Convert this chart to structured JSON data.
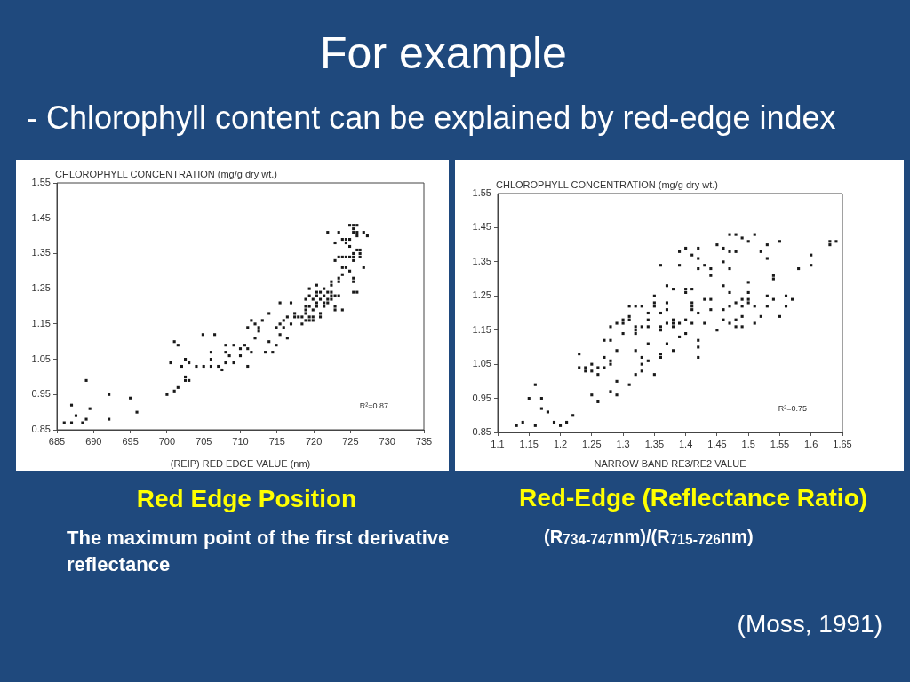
{
  "chart_data": [
    {
      "type": "scatter",
      "title": "For example",
      "subtitle": "- Chlorophyll content can be explained by red-edge index",
      "xlabel": "(REIP) RED EDGE VALUE (nm)",
      "ylabel": "CHLOROPHYLL CONCENTRATION (mg/g dry wt.)",
      "annotations": [
        "R²=0.87",
        "Red Edge Position",
        "The maximum point of the first derivative reflectance"
      ],
      "color": "#1a1a1a",
      "marker": "square",
      "xlim": [
        685,
        735
      ],
      "xticks": [
        685,
        690,
        695,
        700,
        705,
        710,
        715,
        720,
        725,
        730,
        735
      ],
      "ylim": [
        0.85,
        1.55
      ],
      "yticks": [
        0.85,
        0.95,
        1.05,
        1.15,
        1.25,
        1.35,
        1.45,
        1.55
      ],
      "x": [
        686.0,
        687.0,
        687.0,
        687.6,
        688.5,
        689.0,
        689.0,
        689.5,
        692.1,
        692.1,
        695.0,
        695.9,
        700.0,
        700.5,
        701.0,
        701.0,
        701.5,
        701.5,
        702.0,
        702.5,
        702.5,
        702.5,
        703.0,
        703.0,
        704.0,
        704.9,
        705.0,
        706.0,
        706.0,
        706.0,
        706.5,
        707.0,
        707.5,
        708.0,
        708.0,
        708.0,
        708.5,
        709.1,
        709.1,
        710.0,
        710.0,
        710.6,
        711.0,
        711.5,
        711.0,
        711.0,
        712.0,
        712.0,
        711.5,
        712.5,
        712.5,
        713.0,
        713.4,
        713.9,
        713.9,
        714.4,
        714.9,
        714.9,
        715.4,
        715.4,
        715.4,
        715.9,
        715.9,
        716.4,
        716.4,
        716.9,
        716.9,
        717.4,
        717.4,
        717.9,
        718.4,
        718.4,
        718.9,
        718.9,
        718.9,
        718.9,
        718.9,
        719.4,
        719.4,
        719.4,
        719.4,
        719.4,
        719.9,
        719.9,
        719.9,
        719.9,
        720.4,
        720.4,
        720.4,
        720.4,
        720.4,
        720.9,
        720.9,
        720.9,
        720.9,
        721.4,
        721.4,
        721.4,
        721.4,
        721.9,
        721.9,
        721.9,
        721.9,
        722.4,
        722.4,
        722.4,
        722.4,
        722.4,
        722.9,
        722.9,
        722.9,
        722.9,
        722.9,
        723.4,
        723.4,
        723.4,
        723.4,
        723.4,
        723.9,
        723.9,
        723.9,
        723.9,
        724.4,
        724.4,
        723.9,
        724.4,
        724.9,
        724.9,
        724.9,
        724.9,
        724.4,
        725.4,
        724.9,
        725.4,
        725.9,
        725.4,
        725.9,
        725.9,
        725.9,
        725.4,
        725.4,
        725.4,
        725.4,
        725.4,
        725.4,
        725.9,
        726.3,
        726.3,
        726.3,
        726.8,
        726.8,
        727.3
      ],
      "values": [
        0.87,
        0.87,
        0.92,
        0.89,
        0.87,
        0.88,
        0.99,
        0.91,
        0.95,
        0.88,
        0.94,
        0.9,
        0.95,
        1.04,
        1.1,
        0.96,
        1.09,
        0.97,
        1.03,
        1.05,
        1.0,
        0.99,
        1.04,
        0.99,
        1.03,
        1.12,
        1.03,
        1.07,
        1.05,
        1.03,
        1.12,
        1.03,
        1.02,
        1.09,
        1.07,
        1.04,
        1.06,
        1.09,
        1.04,
        1.08,
        1.06,
        1.09,
        1.08,
        1.07,
        1.03,
        1.14,
        1.11,
        1.15,
        1.16,
        1.14,
        1.13,
        1.16,
        1.07,
        1.18,
        1.1,
        1.07,
        1.09,
        1.14,
        1.21,
        1.12,
        1.15,
        1.16,
        1.14,
        1.17,
        1.11,
        1.21,
        1.15,
        1.18,
        1.17,
        1.17,
        1.17,
        1.15,
        1.18,
        1.16,
        1.22,
        1.2,
        1.19,
        1.25,
        1.23,
        1.2,
        1.17,
        1.16,
        1.22,
        1.19,
        1.17,
        1.16,
        1.26,
        1.24,
        1.23,
        1.21,
        1.2,
        1.24,
        1.22,
        1.18,
        1.17,
        1.25,
        1.23,
        1.21,
        1.2,
        1.24,
        1.22,
        1.21,
        1.41,
        1.24,
        1.23,
        1.22,
        1.27,
        1.26,
        1.23,
        1.2,
        1.19,
        1.38,
        1.33,
        1.41,
        1.28,
        1.27,
        1.23,
        1.34,
        1.19,
        1.29,
        1.31,
        1.39,
        1.39,
        1.38,
        1.34,
        1.34,
        1.39,
        1.37,
        1.34,
        1.3,
        1.31,
        1.42,
        1.43,
        1.43,
        1.43,
        1.41,
        1.41,
        1.4,
        1.36,
        1.35,
        1.34,
        1.33,
        1.28,
        1.27,
        1.24,
        1.24,
        1.34,
        1.35,
        1.36,
        1.41,
        1.31,
        1.4
      ]
    },
    {
      "type": "scatter",
      "xlabel": "NARROW BAND RE3/RE2 VALUE",
      "ylabel": "CHLOROPHYLL CONCENTRATION (mg/g dry wt.)",
      "annotations": [
        "R²=0.75",
        "Red-Edge (Reflectance Ratio)",
        "(R$_{734-747}$nm)/(R$_{715-726}$nm)",
        "(Moss, 1991)"
      ],
      "color": "#1a1a1a",
      "marker": "square",
      "xlim": [
        1.1,
        1.65
      ],
      "xticks": [
        1.1,
        1.15,
        1.2,
        1.25,
        1.3,
        1.35,
        1.4,
        1.45,
        1.5,
        1.55,
        1.6,
        1.65
      ],
      "ylim": [
        0.85,
        1.55
      ],
      "yticks": [
        0.85,
        0.95,
        1.05,
        1.15,
        1.25,
        1.35,
        1.45,
        1.55
      ],
      "x": [
        1.13,
        1.14,
        1.15,
        1.16,
        1.16,
        1.17,
        1.17,
        1.18,
        1.19,
        1.2,
        1.21,
        1.22,
        1.23,
        1.23,
        1.24,
        1.24,
        1.25,
        1.25,
        1.25,
        1.26,
        1.26,
        1.26,
        1.27,
        1.27,
        1.27,
        1.28,
        1.28,
        1.28,
        1.28,
        1.28,
        1.29,
        1.29,
        1.29,
        1.29,
        1.3,
        1.3,
        1.3,
        1.31,
        1.31,
        1.31,
        1.31,
        1.32,
        1.32,
        1.32,
        1.32,
        1.32,
        1.32,
        1.33,
        1.33,
        1.33,
        1.33,
        1.33,
        1.34,
        1.34,
        1.34,
        1.34,
        1.34,
        1.35,
        1.35,
        1.35,
        1.35,
        1.36,
        1.36,
        1.36,
        1.36,
        1.36,
        1.36,
        1.37,
        1.37,
        1.37,
        1.37,
        1.37,
        1.38,
        1.38,
        1.38,
        1.38,
        1.38,
        1.39,
        1.39,
        1.39,
        1.39,
        1.4,
        1.4,
        1.4,
        1.4,
        1.4,
        1.41,
        1.41,
        1.41,
        1.41,
        1.41,
        1.41,
        1.42,
        1.42,
        1.42,
        1.42,
        1.42,
        1.42,
        1.42,
        1.43,
        1.43,
        1.43,
        1.44,
        1.44,
        1.44,
        1.44,
        1.45,
        1.45,
        1.46,
        1.46,
        1.46,
        1.46,
        1.46,
        1.47,
        1.48,
        1.47,
        1.48,
        1.47,
        1.47,
        1.47,
        1.47,
        1.48,
        1.48,
        1.48,
        1.49,
        1.49,
        1.49,
        1.49,
        1.49,
        1.5,
        1.5,
        1.5,
        1.5,
        1.5,
        1.51,
        1.51,
        1.51,
        1.52,
        1.52,
        1.53,
        1.53,
        1.53,
        1.53,
        1.54,
        1.54,
        1.54,
        1.55,
        1.55,
        1.56,
        1.56,
        1.57,
        1.58,
        1.6,
        1.6,
        1.63,
        1.63,
        1.64
      ],
      "values": [
        0.87,
        0.88,
        0.95,
        0.99,
        0.87,
        0.95,
        0.92,
        0.91,
        0.88,
        0.87,
        0.88,
        0.9,
        1.08,
        1.04,
        1.04,
        1.03,
        1.05,
        1.03,
        0.96,
        1.04,
        1.02,
        0.94,
        1.12,
        1.07,
        1.04,
        1.16,
        1.12,
        1.06,
        1.05,
        0.97,
        1.17,
        1.09,
        1.0,
        0.96,
        1.18,
        1.17,
        1.14,
        1.22,
        1.19,
        1.18,
        0.99,
        1.22,
        1.16,
        1.15,
        1.14,
        1.09,
        1.02,
        1.22,
        1.16,
        1.07,
        1.05,
        1.03,
        1.2,
        1.18,
        1.16,
        1.11,
        1.06,
        1.02,
        1.25,
        1.23,
        1.22,
        1.34,
        1.2,
        1.16,
        1.15,
        1.08,
        1.07,
        1.28,
        1.23,
        1.21,
        1.17,
        1.11,
        1.27,
        1.18,
        1.17,
        1.16,
        1.09,
        1.38,
        1.34,
        1.17,
        1.13,
        1.39,
        1.27,
        1.26,
        1.18,
        1.14,
        1.37,
        1.27,
        1.23,
        1.22,
        1.21,
        1.17,
        1.39,
        1.36,
        1.33,
        1.2,
        1.12,
        1.1,
        1.07,
        1.34,
        1.24,
        1.17,
        1.33,
        1.31,
        1.24,
        1.21,
        1.4,
        1.15,
        1.39,
        1.35,
        1.28,
        1.21,
        1.18,
        1.43,
        1.43,
        1.38,
        1.38,
        1.33,
        1.26,
        1.22,
        1.17,
        1.23,
        1.18,
        1.16,
        1.42,
        1.24,
        1.22,
        1.19,
        1.16,
        1.41,
        1.29,
        1.26,
        1.24,
        1.23,
        1.43,
        1.22,
        1.17,
        1.38,
        1.19,
        1.4,
        1.36,
        1.25,
        1.22,
        1.31,
        1.3,
        1.24,
        1.41,
        1.19,
        1.25,
        1.22,
        1.24,
        1.33,
        1.37,
        1.34,
        1.41,
        1.4,
        1.41
      ]
    }
  ]
}
